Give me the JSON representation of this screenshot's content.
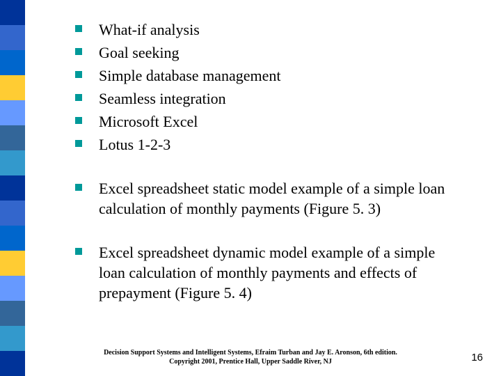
{
  "sidebar_colors": [
    "#003399",
    "#3366cc",
    "#0066cc",
    "#ffcc33",
    "#6699ff",
    "#336699",
    "#3399cc",
    "#003399",
    "#3366cc",
    "#0066cc",
    "#ffcc33",
    "#6699ff",
    "#336699",
    "#3399cc",
    "#003399"
  ],
  "list1": [
    "What-if analysis",
    "Goal seeking",
    "Simple database management",
    "Seamless integration",
    "Microsoft Excel",
    "Lotus 1-2-3"
  ],
  "list2": [
    "Excel spreadsheet static model example of a simple loan calculation of monthly payments (Figure 5. 3)"
  ],
  "list3": [
    "Excel spreadsheet dynamic model example of a simple loan calculation of monthly payments and effects of prepayment (Figure 5. 4)"
  ],
  "footer_line1": "Decision Support Systems and Intelligent Systems, Efraim Turban and Jay E. Aronson, 6th edition.",
  "footer_line2": "Copyright 2001, Prentice Hall, Upper Saddle River, NJ",
  "page_number": "16",
  "bullet_color": "#009999",
  "text_color": "#000000",
  "background_color": "#ffffff"
}
